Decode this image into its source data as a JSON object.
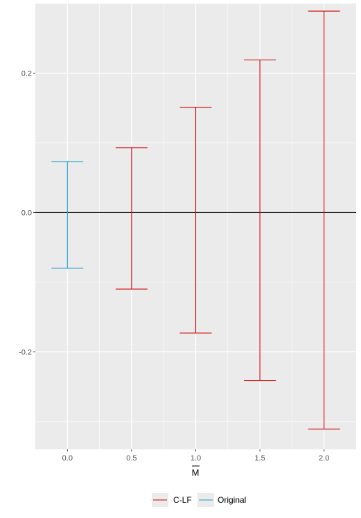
{
  "chart_data": {
    "type": "errorbar",
    "title": "",
    "xlabel": "M",
    "xlabel_overline": true,
    "ylabel": "",
    "x_ticks": [
      "0.0",
      "0.5",
      "1.0",
      "1.5",
      "2.0"
    ],
    "y_ticks": [
      "-0.2",
      "0.0",
      "0.2"
    ],
    "xlim": [
      -0.25,
      2.25
    ],
    "ylim": [
      -0.34,
      0.3
    ],
    "hline": 0,
    "grid": true,
    "legend_position": "bottom",
    "series": [
      {
        "name": "C-LF",
        "color": "#cc0000",
        "points": [
          {
            "x": 0.5,
            "lower": -0.11,
            "upper": 0.093
          },
          {
            "x": 1.0,
            "lower": -0.173,
            "upper": 0.151
          },
          {
            "x": 1.5,
            "lower": -0.241,
            "upper": 0.219
          },
          {
            "x": 2.0,
            "lower": -0.311,
            "upper": 0.289
          }
        ]
      },
      {
        "name": "Original",
        "color": "#1a9ec9",
        "points": [
          {
            "x": 0.0,
            "lower": -0.08,
            "upper": 0.073
          }
        ]
      }
    ]
  }
}
